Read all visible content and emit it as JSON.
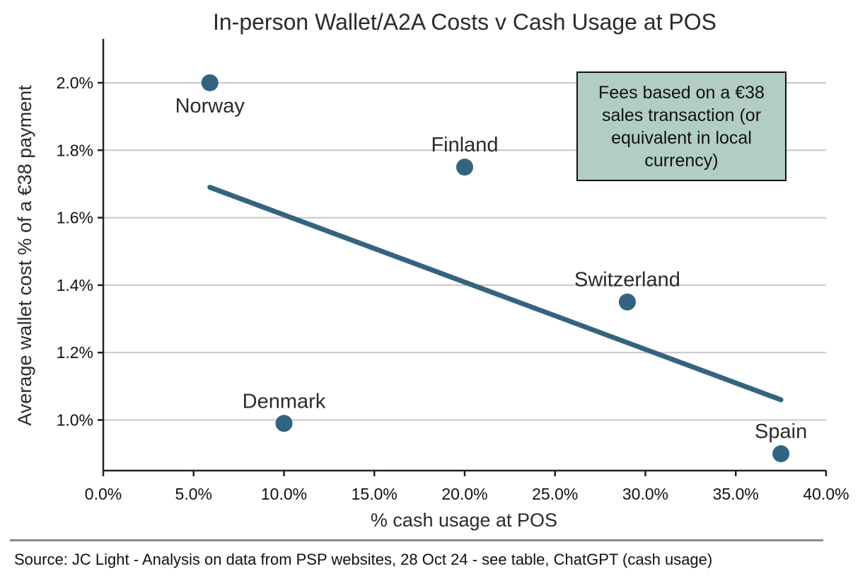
{
  "chart_data": {
    "type": "scatter",
    "title": "In-person Wallet/A2A Costs v Cash Usage at POS",
    "xlabel": "% cash usage at POS",
    "ylabel": "Average wallet cost % of a €38 payment",
    "xlim": [
      0,
      40
    ],
    "ylim": [
      0.85,
      2.13
    ],
    "x_ticks": [
      0,
      5,
      10,
      15,
      20,
      25,
      30,
      35,
      40
    ],
    "x_tick_labels": [
      "0.0%",
      "5.0%",
      "10.0%",
      "15.0%",
      "20.0%",
      "25.0%",
      "30.0%",
      "35.0%",
      "40.0%"
    ],
    "y_ticks": [
      1.0,
      1.2,
      1.4,
      1.6,
      1.8,
      2.0
    ],
    "y_tick_labels": [
      "1.0%",
      "1.2%",
      "1.4%",
      "1.6%",
      "1.8%",
      "2.0%"
    ],
    "grid": "horizontal",
    "points": [
      {
        "label": "Norway",
        "x": 5.9,
        "y": 2.0,
        "label_position": "below"
      },
      {
        "label": "Denmark",
        "x": 10.0,
        "y": 0.99,
        "label_position": "above"
      },
      {
        "label": "Finland",
        "x": 20.0,
        "y": 1.75,
        "label_position": "above"
      },
      {
        "label": "Switzerland",
        "x": 29.0,
        "y": 1.35,
        "label_position": "above"
      },
      {
        "label": "Spain",
        "x": 37.5,
        "y": 0.9,
        "label_position": "above"
      }
    ],
    "trendline": {
      "x": [
        5.9,
        37.5
      ],
      "y": [
        1.69,
        1.06
      ]
    },
    "annotation": "Fees based on a €38 sales transaction (or equivalent in local currency)",
    "colors": {
      "points": "#33647f",
      "trendline": "#33647f",
      "annotation_bg": "#b2cdc4",
      "grid": "#c8c8c8"
    }
  },
  "footer": {
    "source": "Source: JC Light - Analysis on data from PSP websites, 28 Oct 24 - see table, ChatGPT (cash usage)"
  }
}
